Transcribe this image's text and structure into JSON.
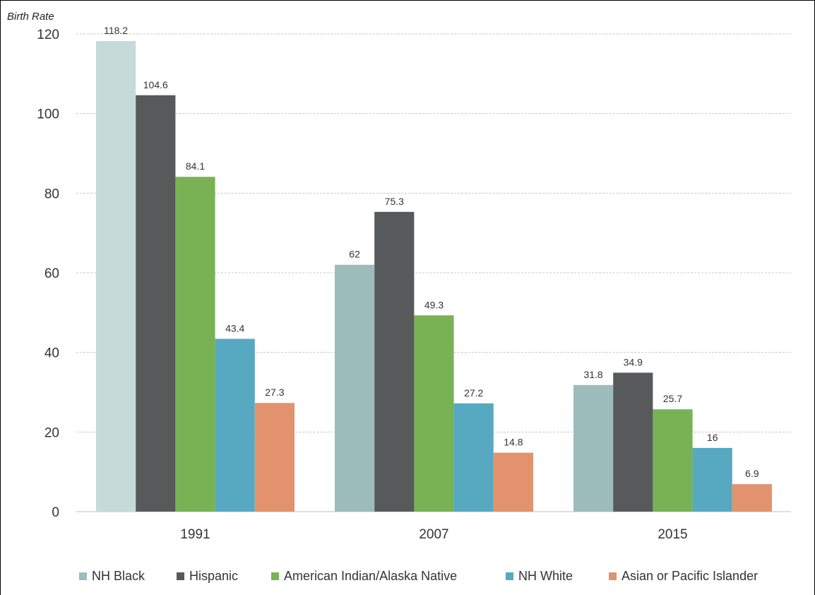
{
  "chart_data": {
    "type": "bar",
    "title": "",
    "ylabel": "Birth Rate",
    "xlabel": "",
    "ylim": [
      0,
      120
    ],
    "yticks": [
      0,
      20,
      40,
      60,
      80,
      100,
      120
    ],
    "grid": true,
    "legend_position": "bottom",
    "categories": [
      "1991",
      "2007",
      "2015"
    ],
    "series": [
      {
        "name": "NH Black",
        "color": "#9cbcbc",
        "values": [
          118.2,
          62,
          31.8
        ],
        "labels": [
          "118.2",
          "62",
          "31.8"
        ]
      },
      {
        "name": "Hispanic",
        "color": "#58595b",
        "values": [
          104.6,
          75.3,
          34.9
        ],
        "labels": [
          "104.6",
          "75.3",
          "34.9"
        ]
      },
      {
        "name": "American Indian/Alaska Native",
        "color": "#79b255",
        "values": [
          84.1,
          49.3,
          25.7
        ],
        "labels": [
          "84.1",
          "49.3",
          "25.7"
        ]
      },
      {
        "name": "NH White",
        "color": "#56a9c0",
        "values": [
          43.4,
          27.2,
          16
        ],
        "labels": [
          "43.4",
          "27.2",
          "16"
        ]
      },
      {
        "name": "Asian or Pacific Islander",
        "color": "#e2936d",
        "values": [
          27.3,
          14.8,
          6.9
        ],
        "labels": [
          "27.3",
          "14.8",
          "6.9"
        ]
      }
    ],
    "first_bar_color_1991": "#c5dbd9"
  }
}
